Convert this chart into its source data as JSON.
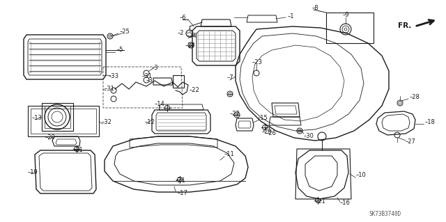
{
  "bg_color": "#ffffff",
  "line_color": "#1a1a1a",
  "label_color": "#1a1a1a",
  "diagram_code": "SK73B3740D",
  "figsize": [
    6.4,
    3.19
  ],
  "dpi": 100
}
